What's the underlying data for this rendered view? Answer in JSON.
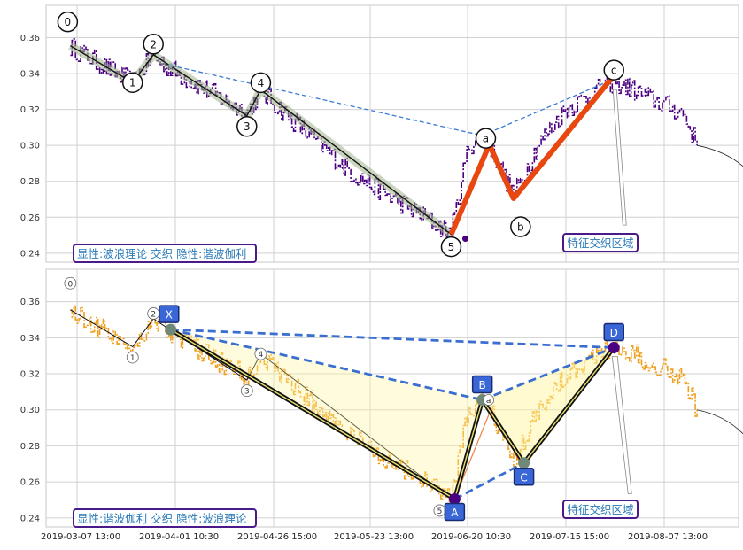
{
  "chart_data": [
    {
      "type": "line",
      "panel": "top",
      "ylim": [
        0.235,
        0.378
      ],
      "yticks": [
        0.24,
        0.26,
        0.28,
        0.3,
        0.32,
        0.34,
        0.36
      ],
      "xlim": [
        0,
        100
      ],
      "grid": true,
      "price_color": "#4b0082",
      "annotation_text": "显性:波浪理论 交织 隐性:谐波伽利",
      "feature_label": "特征交织区域",
      "wave_points": [
        {
          "label": "0",
          "x": 3.5,
          "y": 0.3555
        },
        {
          "label": "1",
          "x": 12.5,
          "y": 0.335
        },
        {
          "label": "2",
          "x": 15.5,
          "y": 0.3505
        },
        {
          "label": "3",
          "x": 29.0,
          "y": 0.3165
        },
        {
          "label": "4",
          "x": 31.0,
          "y": 0.331
        },
        {
          "label": "5",
          "x": 58.5,
          "y": 0.2505
        }
      ],
      "abc_points": [
        {
          "label": "5",
          "x": 58.5,
          "y": 0.2505
        },
        {
          "label": "a",
          "x": 64.0,
          "y": 0.3005
        },
        {
          "label": "b",
          "x": 67.5,
          "y": 0.2705
        },
        {
          "label": "c",
          "x": 82.0,
          "y": 0.339
        }
      ],
      "pattern_points": [
        {
          "x": 18.0,
          "y": 0.3445
        },
        {
          "x": 63.0,
          "y": 0.3055
        },
        {
          "x": 82.0,
          "y": 0.337
        }
      ]
    },
    {
      "type": "line",
      "panel": "bottom",
      "ylim": [
        0.235,
        0.378
      ],
      "yticks": [
        0.24,
        0.26,
        0.28,
        0.3,
        0.32,
        0.34,
        0.36
      ],
      "xlim": [
        0,
        100
      ],
      "grid": true,
      "price_color": "#f0a020",
      "annotation_text": "显性:谐波伽利 交织 隐性:波浪理论",
      "feature_label": "特征交织区域",
      "xtick_labels": [
        "2019-03-07 13:00",
        "2019-04-01 10:30",
        "2019-04-26 15:00",
        "2019-05-23 13:00",
        "2019-06-20 10:30",
        "2019-07-15 15:00",
        "2019-08-07 13:00"
      ],
      "wave_points": [
        {
          "label": "0",
          "x": 3.5,
          "y": 0.3555
        },
        {
          "label": "1",
          "x": 12.5,
          "y": 0.335
        },
        {
          "label": "2",
          "x": 15.5,
          "y": 0.3505
        },
        {
          "label": "3",
          "x": 29.0,
          "y": 0.3165
        },
        {
          "label": "4",
          "x": 31.0,
          "y": 0.331
        },
        {
          "label": "5",
          "x": 58.5,
          "y": 0.2505
        }
      ],
      "xabcd_points": [
        {
          "label": "X",
          "x": 18.0,
          "y": 0.3445
        },
        {
          "label": "A",
          "x": 59.0,
          "y": 0.2505
        },
        {
          "label": "B",
          "x": 63.0,
          "y": 0.3055
        },
        {
          "label": "C",
          "x": 69.0,
          "y": 0.2705
        },
        {
          "label": "D",
          "x": 82.0,
          "y": 0.3345
        }
      ]
    }
  ]
}
